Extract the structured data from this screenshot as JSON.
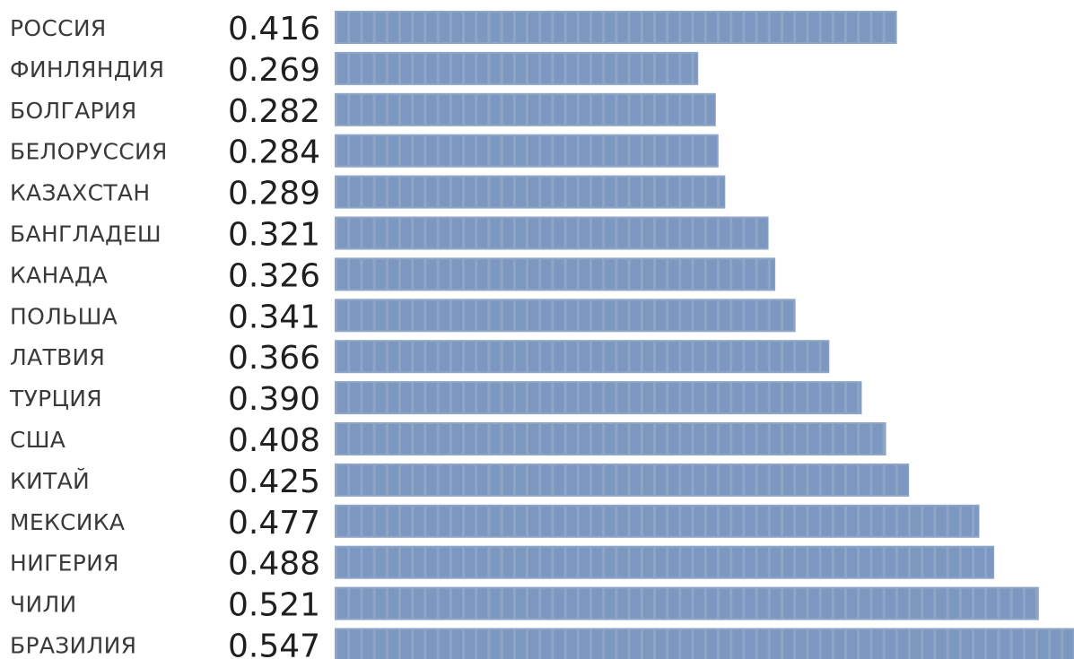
{
  "chart_data": {
    "type": "bar",
    "orientation": "horizontal",
    "categories": [
      "РОССИЯ",
      "ФИНЛЯНДИЯ",
      "БОЛГАРИЯ",
      "БЕЛОРУССИЯ",
      "КАЗАХСТАН",
      "БАНГЛАДЕШ",
      "КАНАДА",
      "ПОЛЬША",
      "ЛАТВИЯ",
      "ТУРЦИЯ",
      "США",
      "КИТАЙ",
      "МЕКСИКА",
      "НИГЕРИЯ",
      "ЧИЛИ",
      "БРАЗИЛИЯ"
    ],
    "values": [
      0.416,
      0.269,
      0.282,
      0.284,
      0.289,
      0.321,
      0.326,
      0.341,
      0.366,
      0.39,
      0.408,
      0.425,
      0.477,
      0.488,
      0.521,
      0.547
    ],
    "value_labels": [
      "0.416",
      "0.269",
      "0.282",
      "0.284",
      "0.289",
      "0.321",
      "0.326",
      "0.341",
      "0.366",
      "0.390",
      "0.408",
      "0.425",
      "0.477",
      "0.488",
      "0.521",
      "0.547"
    ],
    "title": "",
    "xlabel": "",
    "ylabel": "",
    "xlim": [
      0,
      0.547
    ],
    "grid": false,
    "legend": "none",
    "bar_color": "#7d98c0",
    "segment_color": "#8ea5c8"
  }
}
